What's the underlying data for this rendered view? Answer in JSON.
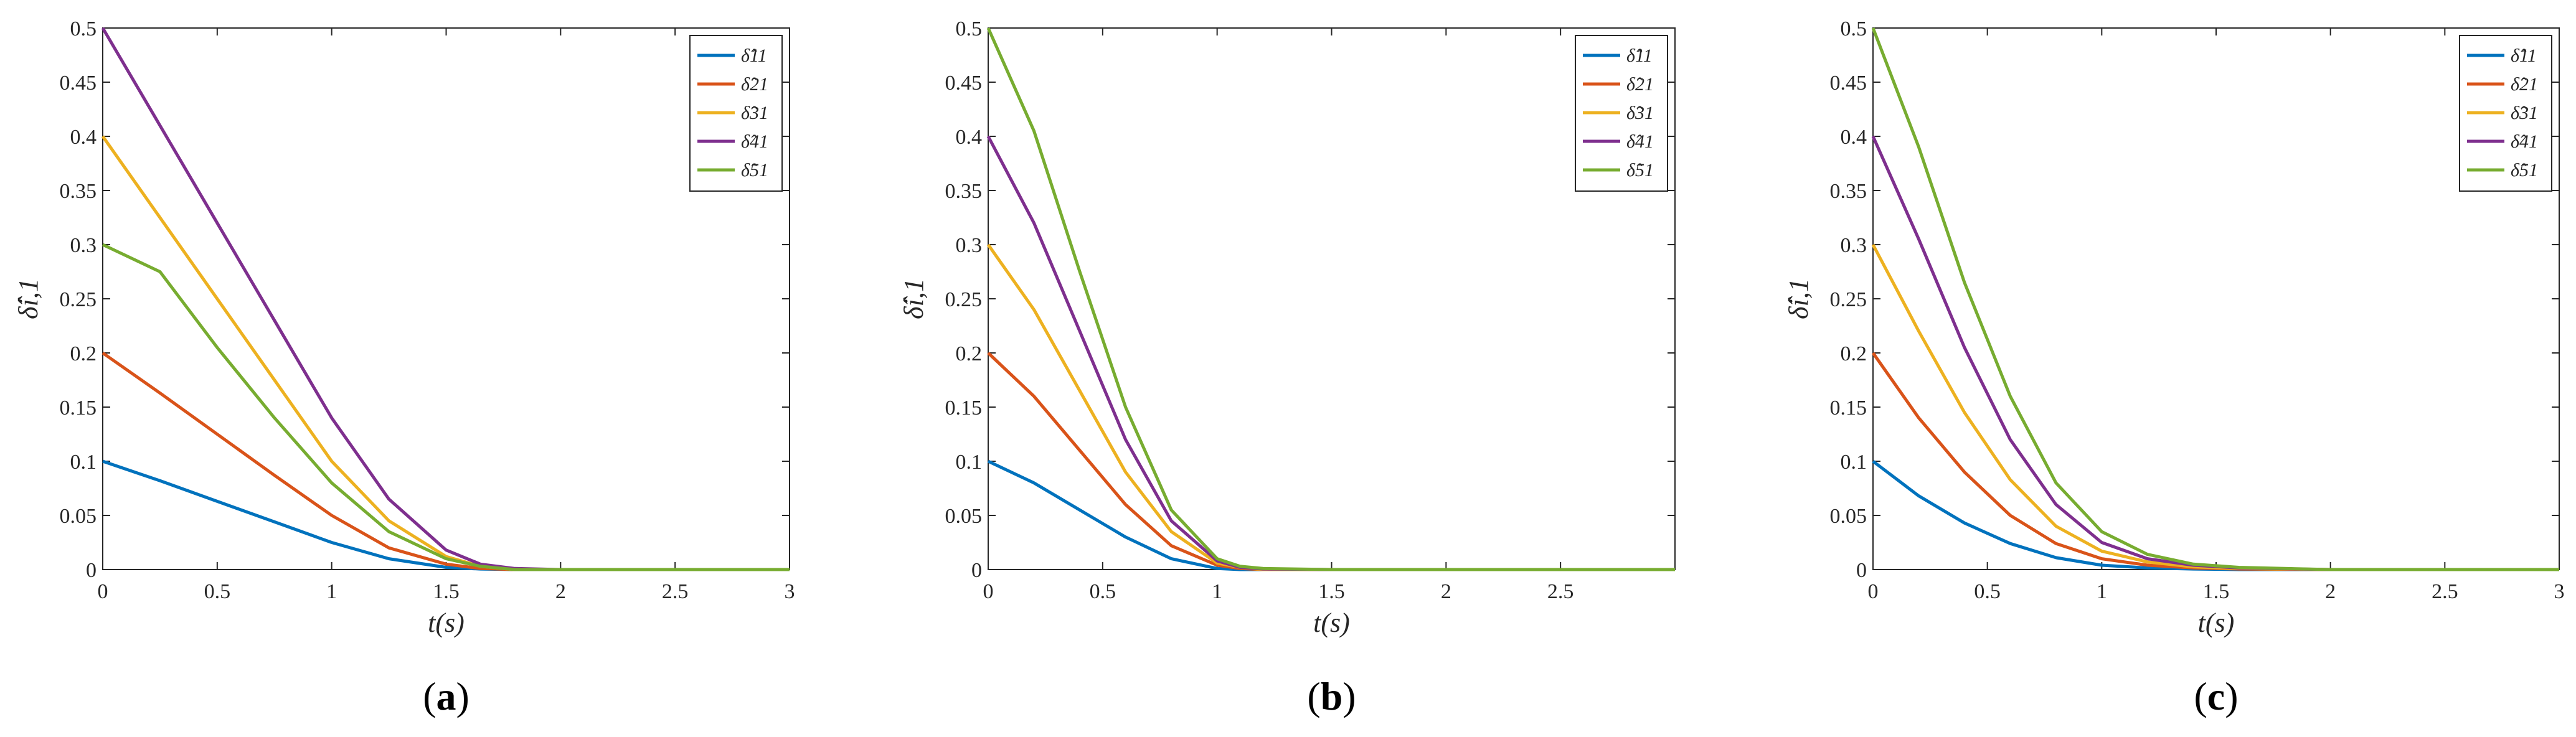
{
  "chart_data": [
    {
      "type": "line",
      "caption": "a",
      "xlabel": "t(s)",
      "ylabel": "δ̂i,1",
      "xlim": [
        0,
        3
      ],
      "ylim": [
        0,
        0.5
      ],
      "xticks": [
        "0",
        "0.5",
        "1",
        "1.5",
        "2",
        "2.5",
        "3"
      ],
      "yticks": [
        "0",
        "0.05",
        "0.1",
        "0.15",
        "0.2",
        "0.25",
        "0.3",
        "0.35",
        "0.4",
        "0.45",
        "0.5"
      ],
      "legend_position": "top-right",
      "x": [
        0,
        0.25,
        0.5,
        0.75,
        1.0,
        1.25,
        1.5,
        1.65,
        1.8,
        2.0,
        2.5,
        3.0
      ],
      "series": [
        {
          "name": "δ̂11",
          "color": "#0072BD",
          "values": [
            0.1,
            0.082,
            0.063,
            0.044,
            0.025,
            0.01,
            0.002,
            0.0005,
            0,
            0,
            0,
            0
          ]
        },
        {
          "name": "δ̂21",
          "color": "#D95319",
          "values": [
            0.2,
            0.163,
            0.125,
            0.087,
            0.05,
            0.02,
            0.005,
            0.001,
            0,
            0,
            0,
            0
          ]
        },
        {
          "name": "δ̂31",
          "color": "#EDB120",
          "values": [
            0.4,
            0.325,
            0.25,
            0.175,
            0.1,
            0.045,
            0.012,
            0.003,
            0,
            0,
            0,
            0
          ]
        },
        {
          "name": "δ̂41",
          "color": "#7E2F8E",
          "values": [
            0.5,
            0.41,
            0.32,
            0.23,
            0.14,
            0.065,
            0.018,
            0.005,
            0.001,
            0,
            0,
            0
          ]
        },
        {
          "name": "δ̂51",
          "color": "#77AC30",
          "values": [
            0.3,
            0.275,
            0.205,
            0.14,
            0.08,
            0.035,
            0.01,
            0.003,
            0,
            0,
            0,
            0
          ]
        }
      ]
    },
    {
      "type": "line",
      "caption": "b",
      "xlabel": "t(s)",
      "ylabel": "δ̂i,1",
      "xlim": [
        0,
        3
      ],
      "ylim": [
        0,
        0.5
      ],
      "xticks": [
        "0",
        "0.5",
        "1",
        "1.5",
        "2",
        "2.5"
      ],
      "yticks": [
        "0",
        "0.05",
        "0.1",
        "0.15",
        "0.2",
        "0.25",
        "0.3",
        "0.35",
        "0.4",
        "0.45",
        "0.5"
      ],
      "legend_position": "top-right",
      "x": [
        0,
        0.2,
        0.4,
        0.6,
        0.8,
        1.0,
        1.1,
        1.2,
        1.5,
        2.0,
        3.0
      ],
      "series": [
        {
          "name": "δ̂11",
          "color": "#0072BD",
          "values": [
            0.1,
            0.08,
            0.055,
            0.03,
            0.01,
            0.001,
            0,
            0,
            0,
            0,
            0
          ]
        },
        {
          "name": "δ̂21",
          "color": "#D95319",
          "values": [
            0.2,
            0.16,
            0.11,
            0.06,
            0.022,
            0.004,
            0.001,
            0,
            0,
            0,
            0
          ]
        },
        {
          "name": "δ̂31",
          "color": "#EDB120",
          "values": [
            0.3,
            0.24,
            0.165,
            0.09,
            0.035,
            0.006,
            0.002,
            0,
            0,
            0,
            0
          ]
        },
        {
          "name": "δ̂41",
          "color": "#7E2F8E",
          "values": [
            0.4,
            0.32,
            0.22,
            0.12,
            0.045,
            0.008,
            0.002,
            0.0005,
            0,
            0,
            0
          ]
        },
        {
          "name": "δ̂51",
          "color": "#77AC30",
          "values": [
            0.5,
            0.405,
            0.275,
            0.15,
            0.055,
            0.01,
            0.003,
            0.001,
            0,
            0,
            0
          ]
        }
      ]
    },
    {
      "type": "line",
      "caption": "c",
      "xlabel": "t(s)",
      "ylabel": "δ̂i,1",
      "xlim": [
        0,
        3
      ],
      "ylim": [
        0,
        0.5
      ],
      "xticks": [
        "0",
        "0.5",
        "1",
        "1.5",
        "2",
        "2.5",
        "3"
      ],
      "yticks": [
        "0",
        "0.05",
        "0.1",
        "0.15",
        "0.2",
        "0.25",
        "0.3",
        "0.35",
        "0.4",
        "0.45",
        "0.5"
      ],
      "legend_position": "top-right",
      "x": [
        0,
        0.2,
        0.4,
        0.6,
        0.8,
        1.0,
        1.2,
        1.4,
        1.6,
        2.0,
        2.5,
        3.0
      ],
      "series": [
        {
          "name": "δ̂11",
          "color": "#0072BD",
          "values": [
            0.1,
            0.068,
            0.043,
            0.024,
            0.011,
            0.004,
            0.0015,
            0.0005,
            0,
            0,
            0,
            0
          ]
        },
        {
          "name": "δ̂21",
          "color": "#D95319",
          "values": [
            0.2,
            0.14,
            0.09,
            0.05,
            0.024,
            0.01,
            0.004,
            0.0015,
            0.0005,
            0,
            0,
            0
          ]
        },
        {
          "name": "δ̂31",
          "color": "#EDB120",
          "values": [
            0.3,
            0.22,
            0.145,
            0.083,
            0.04,
            0.017,
            0.007,
            0.0025,
            0.001,
            0,
            0,
            0
          ]
        },
        {
          "name": "δ̂41",
          "color": "#7E2F8E",
          "values": [
            0.4,
            0.305,
            0.205,
            0.12,
            0.06,
            0.025,
            0.01,
            0.004,
            0.0015,
            0,
            0,
            0
          ]
        },
        {
          "name": "δ̂51",
          "color": "#77AC30",
          "values": [
            0.5,
            0.39,
            0.265,
            0.16,
            0.08,
            0.035,
            0.014,
            0.005,
            0.002,
            0,
            0,
            0
          ]
        }
      ]
    }
  ]
}
